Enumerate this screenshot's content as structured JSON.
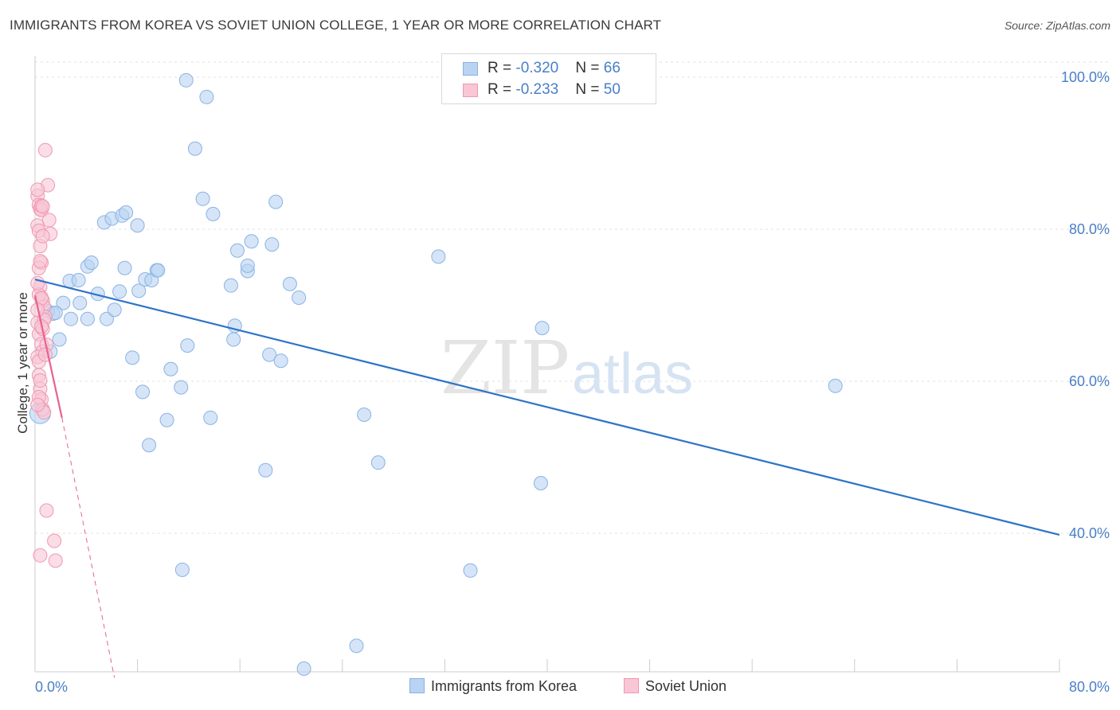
{
  "title": "IMMIGRANTS FROM KOREA VS SOVIET UNION COLLEGE, 1 YEAR OR MORE CORRELATION CHART",
  "source": "Source: ZipAtlas.com",
  "legend": {
    "rows": [
      {
        "r_label": "R = ",
        "r_value": "-0.320",
        "n_label": "N = ",
        "n_value": "66"
      },
      {
        "r_label": "R = ",
        "r_value": "-0.233",
        "n_label": "N = ",
        "n_value": "50"
      }
    ]
  },
  "colors": {
    "korea_fill": "#b9d3f2",
    "korea_stroke": "#8ab2e4",
    "korea_line": "#2e74c9",
    "soviet_fill": "#f9c6d6",
    "soviet_stroke": "#ef97b4",
    "soviet_line": "#e8628f",
    "grid": "#e0e0e0",
    "tick_text": "#4a7fc9"
  },
  "watermark": {
    "zip": "ZIP",
    "atlas": "atlas"
  },
  "chart_data": {
    "type": "scatter",
    "title": "IMMIGRANTS FROM KOREA VS SOVIET UNION COLLEGE, 1 YEAR OR MORE CORRELATION CHART",
    "xlabel": "",
    "ylabel": "College, 1 year or more",
    "xlim": [
      0,
      80
    ],
    "ylim": [
      20,
      102
    ],
    "x_tick_labels": [
      "0.0%",
      "80.0%"
    ],
    "y_ticks": [
      40,
      60,
      80,
      100
    ],
    "y_tick_labels": [
      "40.0%",
      "60.0%",
      "80.0%",
      "100.0%"
    ],
    "grid": true,
    "legend_position": "top-center",
    "series": [
      {
        "name": "Immigrants from Korea",
        "r": -0.32,
        "n": 66,
        "trend": {
          "x": [
            0,
            80
          ],
          "y": [
            73.4,
            39.8
          ],
          "style": "solid"
        },
        "points": [
          [
            0.4,
            55.8
          ],
          [
            1.0,
            69.2
          ],
          [
            1.2,
            63.9
          ],
          [
            1.9,
            65.5
          ],
          [
            1.4,
            68.9
          ],
          [
            2.7,
            73.2
          ],
          [
            2.2,
            70.3
          ],
          [
            2.8,
            68.2
          ],
          [
            3.5,
            70.3
          ],
          [
            3.4,
            73.3
          ],
          [
            4.1,
            75.1
          ],
          [
            4.4,
            75.6
          ],
          [
            4.1,
            68.2
          ],
          [
            4.9,
            71.5
          ],
          [
            5.6,
            68.2
          ],
          [
            5.4,
            80.9
          ],
          [
            6.0,
            81.4
          ],
          [
            6.2,
            69.4
          ],
          [
            6.6,
            71.8
          ],
          [
            6.8,
            81.8
          ],
          [
            7.0,
            74.9
          ],
          [
            7.1,
            82.2
          ],
          [
            7.6,
            63.1
          ],
          [
            8.1,
            71.9
          ],
          [
            8.0,
            80.5
          ],
          [
            8.4,
            58.6
          ],
          [
            8.6,
            73.4
          ],
          [
            8.9,
            51.6
          ],
          [
            9.1,
            73.3
          ],
          [
            9.5,
            74.6
          ],
          [
            9.6,
            74.6
          ],
          [
            10.3,
            54.9
          ],
          [
            10.6,
            61.6
          ],
          [
            11.4,
            59.2
          ],
          [
            11.9,
            64.7
          ],
          [
            11.5,
            35.2
          ],
          [
            11.8,
            99.6
          ],
          [
            13.1,
            84.0
          ],
          [
            13.4,
            97.4
          ],
          [
            12.5,
            90.6
          ],
          [
            13.9,
            82.0
          ],
          [
            13.7,
            55.2
          ],
          [
            15.3,
            72.6
          ],
          [
            15.5,
            65.5
          ],
          [
            15.6,
            67.3
          ],
          [
            15.8,
            77.2
          ],
          [
            16.6,
            74.5
          ],
          [
            16.6,
            75.2
          ],
          [
            16.9,
            78.4
          ],
          [
            18.0,
            48.3
          ],
          [
            18.5,
            78.0
          ],
          [
            18.8,
            83.6
          ],
          [
            18.3,
            63.5
          ],
          [
            19.2,
            62.7
          ],
          [
            19.9,
            72.8
          ],
          [
            20.6,
            71.0
          ],
          [
            21.0,
            22.2
          ],
          [
            25.1,
            25.2
          ],
          [
            25.7,
            55.6
          ],
          [
            26.8,
            49.3
          ],
          [
            31.5,
            76.4
          ],
          [
            34.0,
            35.1
          ],
          [
            39.5,
            46.6
          ],
          [
            39.6,
            67.0
          ],
          [
            62.5,
            59.4
          ],
          [
            1.6,
            69.0
          ]
        ]
      },
      {
        "name": "Soviet Union",
        "r": -0.233,
        "n": 50,
        "trend": {
          "x": [
            0,
            2.1
          ],
          "y": [
            71.3,
            55.2
          ],
          "style": "solid",
          "extended_x": [
            2.1,
            6.2
          ],
          "extended_y": [
            55.2,
            21.0
          ],
          "extended_style": "dashed"
        },
        "points": [
          [
            0.2,
            84.4
          ],
          [
            0.3,
            83.2
          ],
          [
            0.4,
            82.7
          ],
          [
            0.5,
            82.5
          ],
          [
            0.2,
            80.5
          ],
          [
            0.3,
            79.8
          ],
          [
            0.4,
            77.8
          ],
          [
            0.5,
            75.6
          ],
          [
            0.3,
            74.9
          ],
          [
            0.4,
            72.4
          ],
          [
            0.5,
            71.0
          ],
          [
            0.6,
            70.6
          ],
          [
            0.7,
            69.8
          ],
          [
            0.8,
            68.5
          ],
          [
            0.2,
            67.7
          ],
          [
            0.3,
            66.2
          ],
          [
            0.5,
            64.9
          ],
          [
            0.6,
            63.9
          ],
          [
            0.2,
            63.2
          ],
          [
            0.3,
            60.8
          ],
          [
            0.4,
            59.0
          ],
          [
            0.5,
            57.6
          ],
          [
            0.6,
            56.3
          ],
          [
            0.7,
            55.9
          ],
          [
            0.8,
            90.4
          ],
          [
            1.0,
            85.8
          ],
          [
            1.1,
            81.2
          ],
          [
            1.2,
            79.4
          ],
          [
            0.9,
            64.8
          ],
          [
            0.9,
            43.0
          ],
          [
            1.5,
            39.0
          ],
          [
            0.4,
            37.1
          ],
          [
            1.6,
            36.4
          ],
          [
            0.3,
            71.4
          ],
          [
            0.5,
            70.9
          ],
          [
            0.7,
            68.1
          ],
          [
            0.2,
            85.2
          ],
          [
            0.5,
            83.1
          ],
          [
            0.6,
            83.0
          ],
          [
            0.2,
            72.9
          ],
          [
            0.4,
            60.1
          ],
          [
            0.3,
            57.9
          ],
          [
            0.6,
            66.9
          ],
          [
            0.3,
            62.6
          ],
          [
            0.8,
            63.5
          ],
          [
            0.2,
            69.4
          ],
          [
            0.4,
            75.8
          ],
          [
            0.6,
            79.1
          ],
          [
            0.2,
            56.9
          ],
          [
            0.5,
            67.2
          ]
        ]
      }
    ]
  }
}
